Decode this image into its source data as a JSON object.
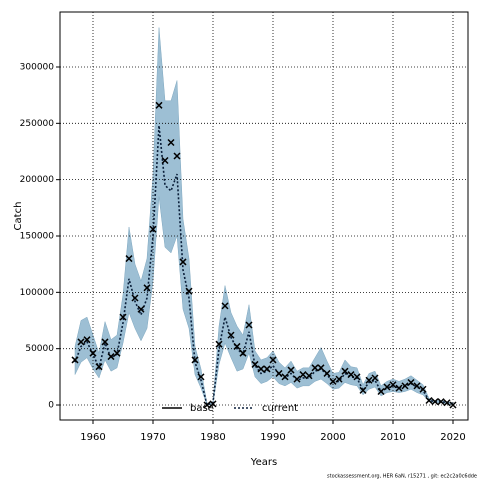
{
  "chart_data": {
    "type": "line",
    "x_label": "Years",
    "y_label": "Catch",
    "footnote": "stockassessment.org, HER 6aN, r15271 , git: ec2c2a0c6dde",
    "x": [
      1957,
      1958,
      1959,
      1960,
      1961,
      1962,
      1963,
      1964,
      1965,
      1966,
      1967,
      1968,
      1969,
      1970,
      1971,
      1972,
      1973,
      1974,
      1975,
      1976,
      1977,
      1978,
      1979,
      1980,
      1981,
      1982,
      1983,
      1984,
      1985,
      1986,
      1987,
      1988,
      1989,
      1990,
      1991,
      1992,
      1993,
      1994,
      1995,
      1996,
      1997,
      1998,
      1999,
      2000,
      2001,
      2002,
      2003,
      2004,
      2005,
      2006,
      2007,
      2008,
      2009,
      2010,
      2011,
      2012,
      2013,
      2014,
      2015,
      2016,
      2017,
      2018,
      2019,
      2020
    ],
    "series": [
      {
        "name": "base",
        "color": "#000000",
        "band_color": "#9dbfd4",
        "lower": [
          27000,
          38000,
          42000,
          32000,
          24000,
          40000,
          30000,
          33000,
          55000,
          82000,
          68000,
          57000,
          68000,
          110000,
          185000,
          140000,
          135000,
          150000,
          85000,
          68000,
          27000,
          15000,
          0,
          1000,
          36000,
          55000,
          42000,
          30000,
          32000,
          46000,
          25000,
          19000,
          21000,
          25000,
          19000,
          17000,
          20000,
          15000,
          17000,
          17000,
          21000,
          23000,
          19000,
          14000,
          15000,
          20000,
          18000,
          17000,
          9000,
          14000,
          16000,
          8000,
          11000,
          12000,
          11000,
          12000,
          14000,
          11000,
          9000,
          3000,
          2000,
          2000,
          1000,
          0
        ],
        "upper": [
          52000,
          75000,
          78000,
          62000,
          46000,
          74000,
          58000,
          62000,
          98000,
          158000,
          125000,
          110000,
          130000,
          205000,
          335000,
          270000,
          270000,
          288000,
          165000,
          130000,
          52000,
          32000,
          1000,
          3000,
          70000,
          106000,
          82000,
          70000,
          62000,
          89000,
          48000,
          40000,
          42000,
          48000,
          38000,
          33000,
          39000,
          30000,
          33000,
          33000,
          42000,
          51000,
          39000,
          28000,
          29000,
          40000,
          34000,
          33000,
          18000,
          28000,
          30000,
          17000,
          21000,
          23000,
          21000,
          23000,
          26000,
          22000,
          18000,
          6000,
          4000,
          4000,
          3000,
          2000
        ]
      },
      {
        "name": "current",
        "color": "#0a1f3a",
        "dash": true,
        "values": [
          38000,
          52000,
          56000,
          45000,
          33000,
          55000,
          42000,
          45000,
          73000,
          112000,
          92000,
          80000,
          95000,
          150000,
          248000,
          195000,
          190000,
          205000,
          120000,
          95000,
          38000,
          22000,
          0,
          2000,
          50000,
          78000,
          60000,
          50000,
          45000,
          65000,
          35000,
          28000,
          30000,
          35000,
          27000,
          24000,
          28000,
          22000,
          24000,
          24000,
          30000,
          32000,
          27000,
          20000,
          21000,
          28000,
          25000,
          24000,
          13000,
          20000,
          22000,
          12000,
          15000,
          17000,
          15000,
          17000,
          19000,
          16000,
          13000,
          4000,
          3000,
          3000,
          2000,
          1000
        ]
      }
    ],
    "observed": {
      "marker": "x",
      "color": "#000000",
      "values": [
        40000,
        56000,
        58000,
        46000,
        34000,
        56000,
        43000,
        46000,
        78000,
        130000,
        95000,
        85000,
        104000,
        156000,
        266000,
        217000,
        233000,
        221000,
        127000,
        101000,
        40000,
        25000,
        0,
        1000,
        54000,
        88000,
        62000,
        52000,
        46000,
        71000,
        36000,
        32000,
        32000,
        40000,
        28000,
        25000,
        31000,
        23000,
        27000,
        26000,
        33000,
        33000,
        28000,
        21000,
        23000,
        30000,
        27000,
        25000,
        13000,
        22000,
        24000,
        12000,
        16000,
        18000,
        15000,
        17000,
        20000,
        17000,
        14000,
        4000,
        3000,
        3000,
        2000,
        0
      ]
    },
    "xlim": [
      1954.5,
      2022.5
    ],
    "ylim": [
      -13300,
      348800
    ],
    "xticks": [
      1960,
      1970,
      1980,
      1990,
      2000,
      2010,
      2020
    ],
    "yticks": [
      0,
      50000,
      100000,
      150000,
      200000,
      250000,
      300000
    ],
    "grid": true,
    "legend": "bottom"
  }
}
